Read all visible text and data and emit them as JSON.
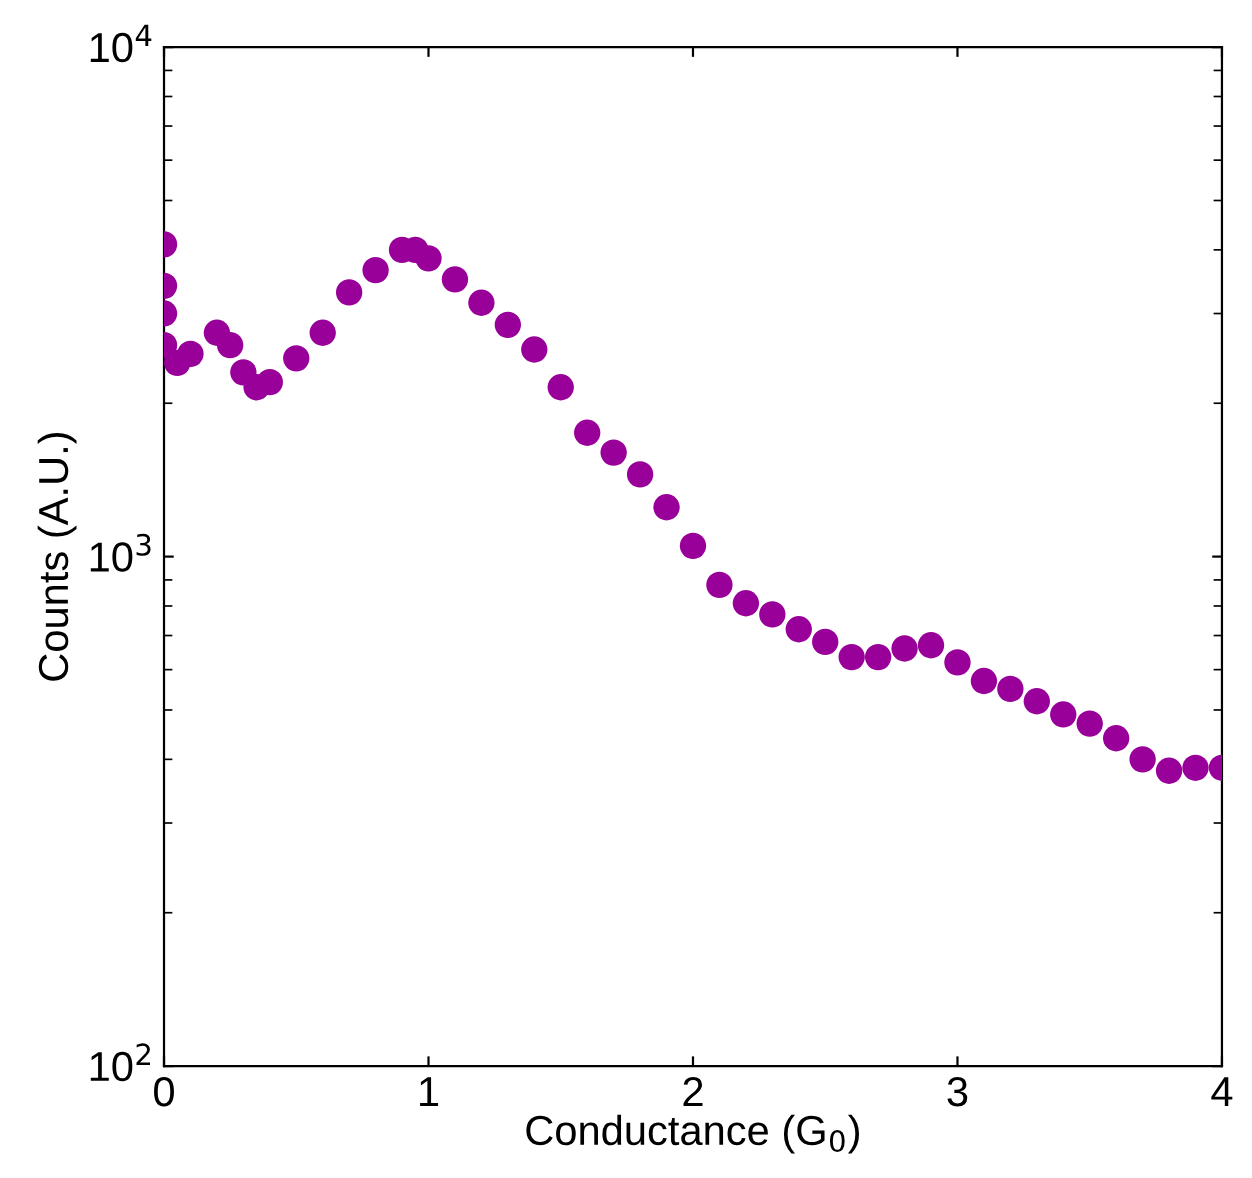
{
  "chart_data": {
    "type": "scatter",
    "xlabel": "Conductance (G$_{0}$)",
    "ylabel": "Counts (A.U.)",
    "log": "y",
    "xlim": [
      0,
      4
    ],
    "xticks": [
      0,
      1,
      2,
      3,
      4
    ],
    "ylim": [
      100,
      10000
    ],
    "yticks": [
      {
        "value": 100,
        "label": "10$^{2}$"
      },
      {
        "value": 1000,
        "label": "10$^{3}$"
      },
      {
        "value": 10000,
        "label": "10$^{4}$"
      }
    ],
    "marker": "circle",
    "grid": false,
    "legend": false,
    "series": [
      {
        "color": "#990099",
        "x": [
          0,
          0,
          0,
          0,
          0.05,
          0.1,
          0.2,
          0.25,
          0.3,
          0.35,
          0.4,
          0.5,
          0.6,
          0.7,
          0.8,
          0.9,
          0.95,
          1.0,
          1.1,
          1.2,
          1.3,
          1.4,
          1.5,
          1.6,
          1.7,
          1.8,
          1.9,
          2.0,
          2.1,
          2.2,
          2.3,
          2.4,
          2.5,
          2.6,
          2.7,
          2.8,
          2.9,
          3.0,
          3.1,
          3.2,
          3.3,
          3.4,
          3.5,
          3.6,
          3.7,
          3.8,
          3.9,
          4.0
        ],
        "values": [
          4100,
          3400,
          3000,
          2600,
          2400,
          2500,
          2750,
          2600,
          2300,
          2150,
          2200,
          2450,
          2750,
          3300,
          3650,
          4000,
          4000,
          3850,
          3500,
          3150,
          2850,
          2550,
          2150,
          1750,
          1600,
          1450,
          1250,
          1050,
          880,
          810,
          770,
          720,
          680,
          635,
          635,
          660,
          670,
          620,
          570,
          550,
          520,
          490,
          470,
          440,
          400,
          380,
          385,
          385
        ]
      }
    ]
  }
}
